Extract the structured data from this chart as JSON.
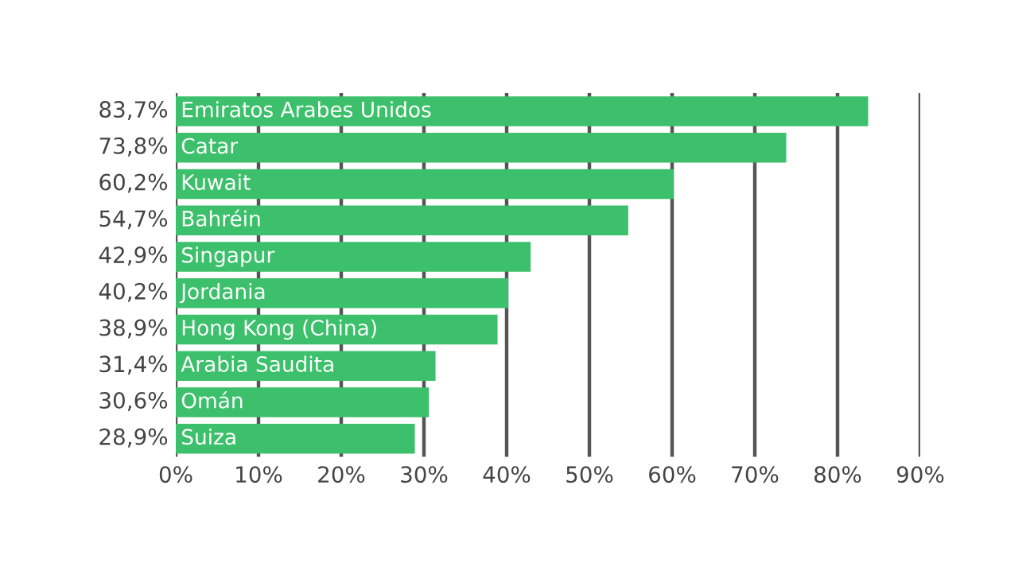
{
  "chart_data": {
    "type": "bar",
    "orientation": "horizontal",
    "categories": [
      "Emiratos Arabes Unidos",
      "Catar",
      "Kuwait",
      "Bahréin",
      "Singapur",
      "Jordania",
      "Hong Kong (China)",
      "Arabia Saudita",
      "Omán",
      "Suiza"
    ],
    "values": [
      83.7,
      73.8,
      60.2,
      54.7,
      42.9,
      40.2,
      38.9,
      31.4,
      30.6,
      28.9
    ],
    "value_labels": [
      "83,7%",
      "73,8%",
      "60,2%",
      "54,7%",
      "42,9%",
      "40,2%",
      "38,9%",
      "31,4%",
      "30,6%",
      "28,9%"
    ],
    "color": "#3cc06b",
    "xlim": [
      0,
      90
    ],
    "xticks": [
      {
        "value": 0,
        "label": "0%"
      },
      {
        "value": 10,
        "label": "10%"
      },
      {
        "value": 20,
        "label": "20%"
      },
      {
        "value": 30,
        "label": "30%"
      },
      {
        "value": 40,
        "label": "40%"
      },
      {
        "value": 50,
        "label": "50%"
      },
      {
        "value": 60,
        "label": "60%"
      },
      {
        "value": 70,
        "label": "70%"
      },
      {
        "value": 80,
        "label": "80%"
      },
      {
        "value": 90,
        "label": "90%"
      }
    ],
    "grid": "x"
  }
}
